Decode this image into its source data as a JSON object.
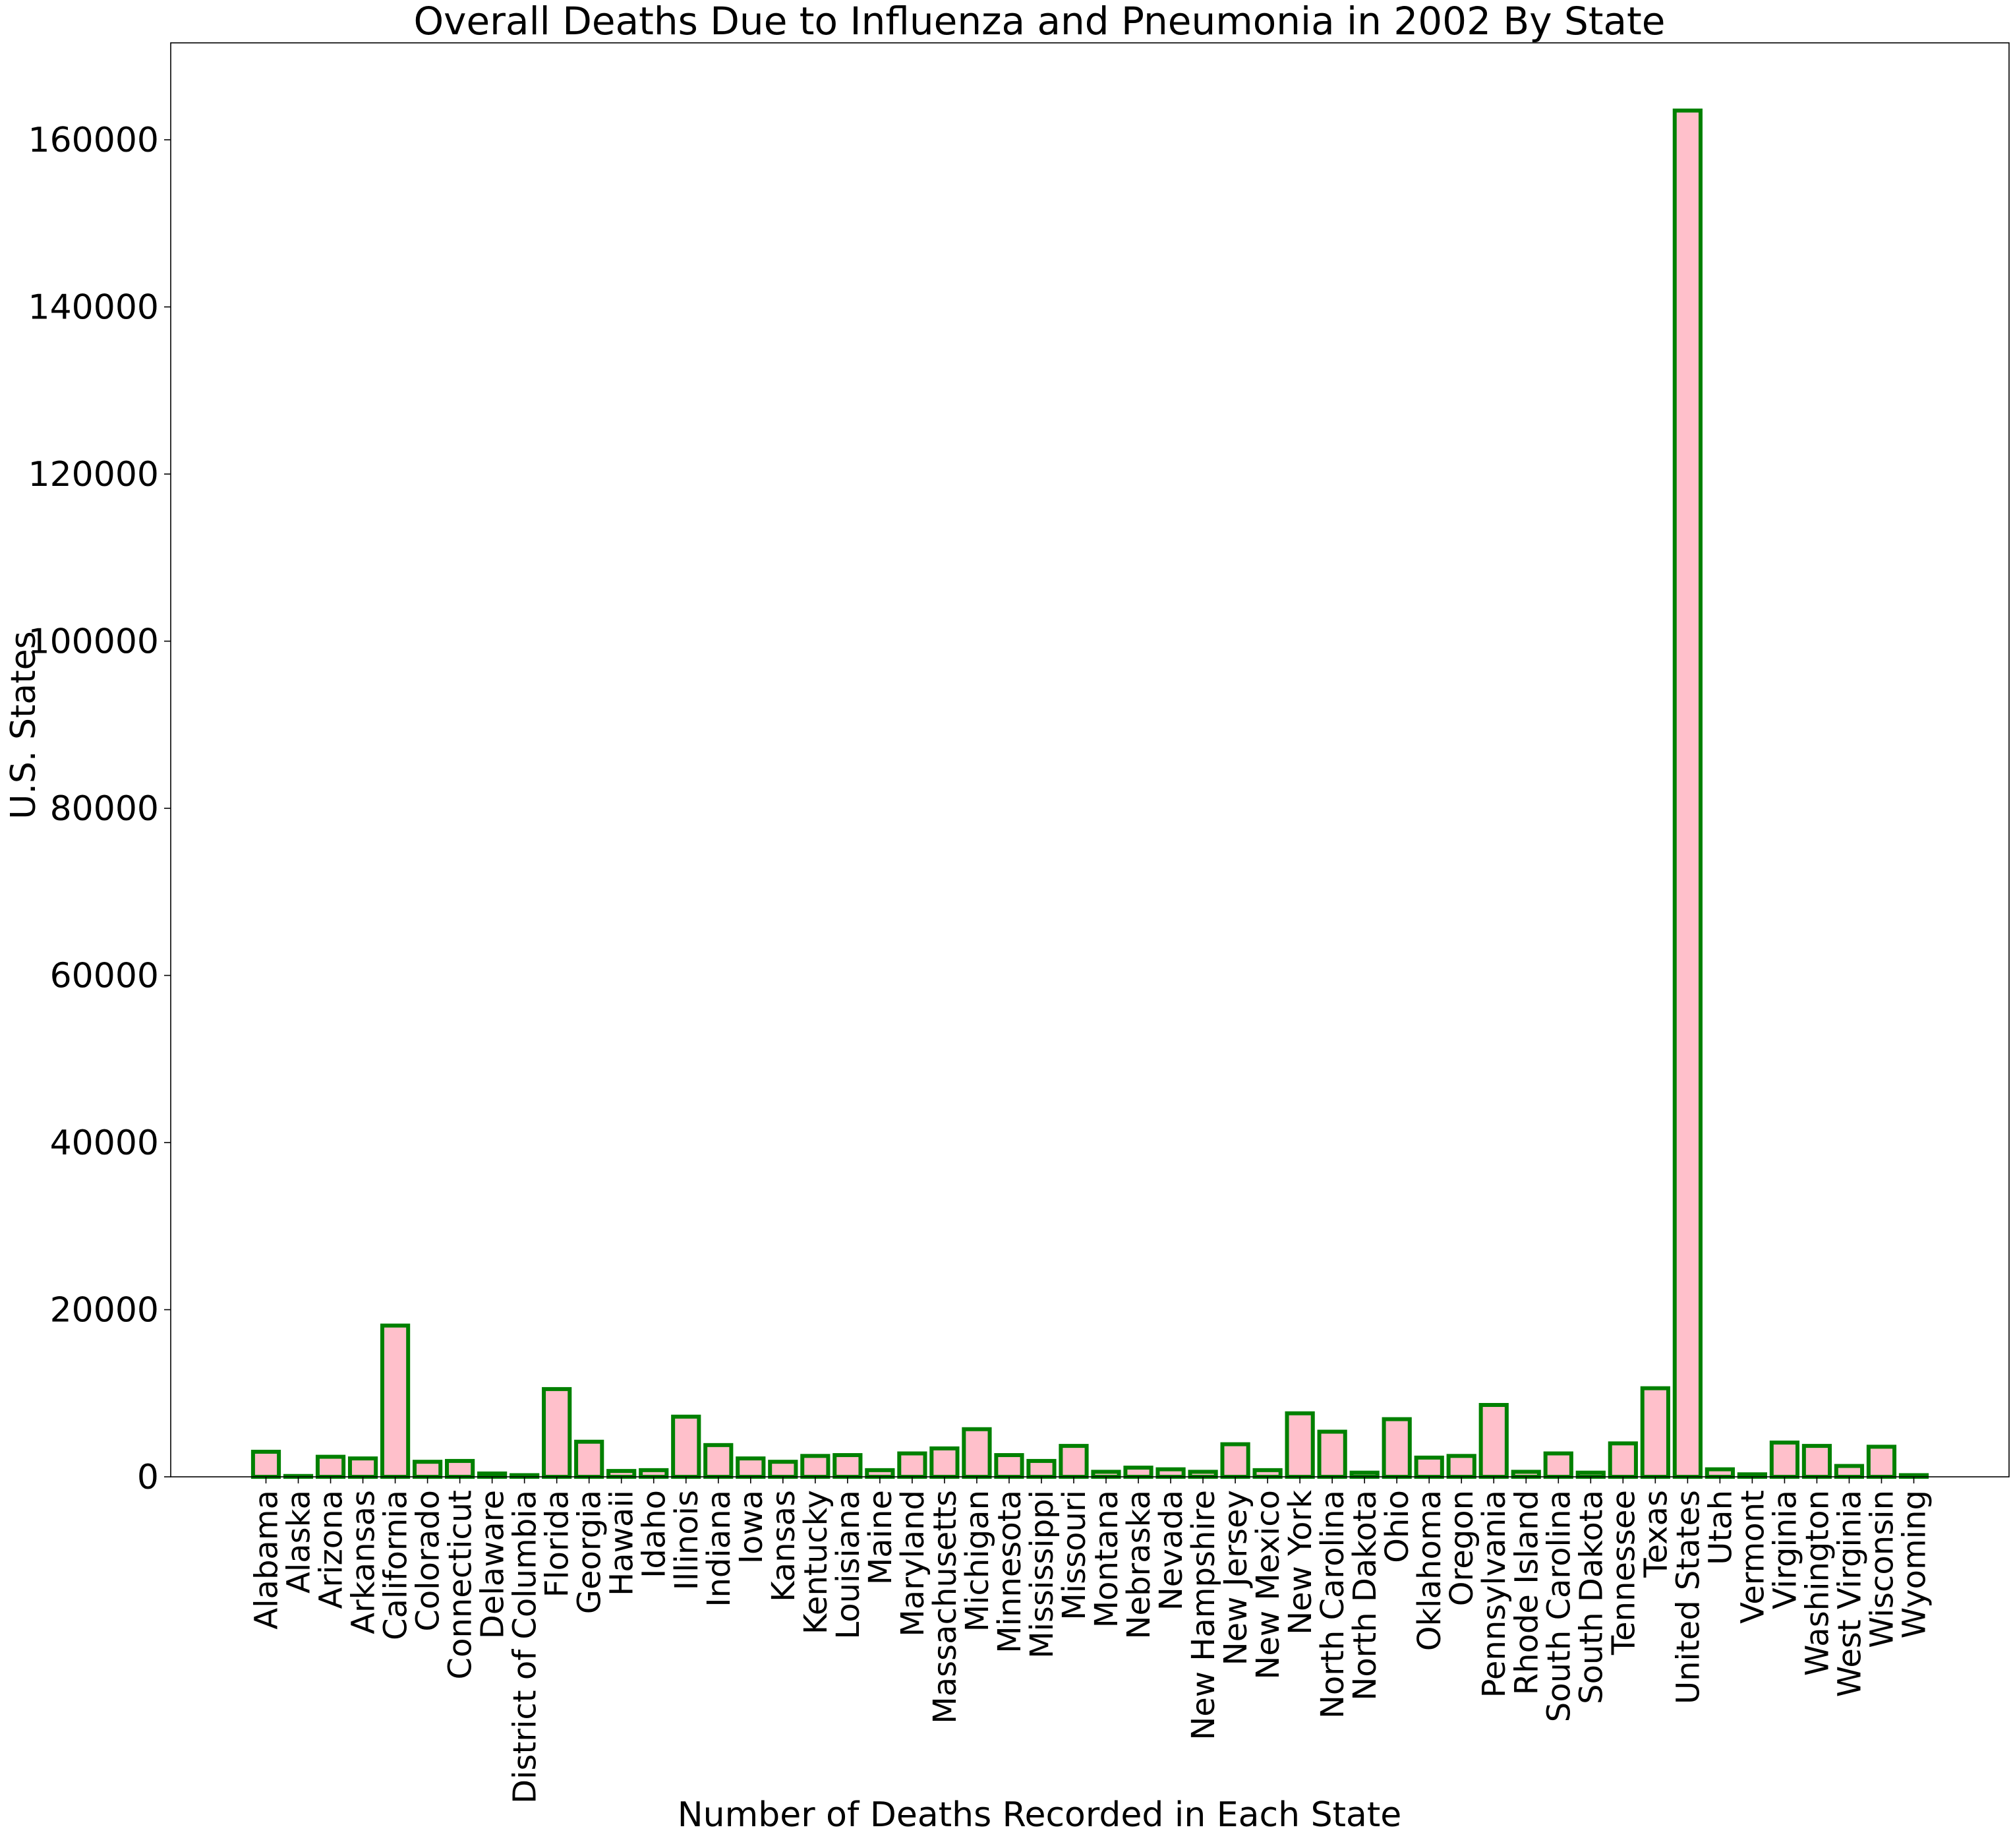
{
  "chart_data": {
    "type": "bar",
    "title": "Overall Deaths Due to Influenza and Pneumonia in 2002 By State",
    "xlabel": "Number of Deaths Recorded in Each State",
    "ylabel": "U.S. States",
    "ylim": [
      0,
      171600
    ],
    "yticks": [
      0,
      20000,
      40000,
      60000,
      80000,
      100000,
      120000,
      140000,
      160000
    ],
    "grid": false,
    "legend": "none",
    "colors": {
      "bar_fill": "#ffc0cb",
      "bar_edge": "#008000",
      "axis": "#000000"
    },
    "categories": [
      "Alabama",
      "Alaska",
      "Arizona",
      "Arkansas",
      "California",
      "Colorado",
      "Connecticut",
      "Delaware",
      "District of Columbia",
      "Florida",
      "Georgia",
      "Hawaii",
      "Idaho",
      "Illinois",
      "Indiana",
      "Iowa",
      "Kansas",
      "Kentucky",
      "Louisiana",
      "Maine",
      "Maryland",
      "Massachusetts",
      "Michigan",
      "Minnesota",
      "Mississippi",
      "Missouri",
      "Montana",
      "Nebraska",
      "Nevada",
      "New Hampshire",
      "New Jersey",
      "New Mexico",
      "New York",
      "North Carolina",
      "North Dakota",
      "Ohio",
      "Oklahoma",
      "Oregon",
      "Pennsylvania",
      "Rhode Island",
      "South Carolina",
      "South Dakota",
      "Tennessee",
      "Texas",
      "United States",
      "Utah",
      "Vermont",
      "Virginia",
      "Washington",
      "West Virginia",
      "Wisconsin",
      "Wyoming"
    ],
    "values": [
      3000,
      100,
      2400,
      2200,
      18100,
      1800,
      1900,
      400,
      200,
      10500,
      4200,
      700,
      800,
      7200,
      3800,
      2200,
      1800,
      2500,
      2600,
      800,
      2800,
      3400,
      5700,
      2600,
      1900,
      3700,
      600,
      1100,
      900,
      600,
      3900,
      800,
      7600,
      5400,
      500,
      6900,
      2300,
      2500,
      8600,
      600,
      2800,
      500,
      4000,
      10600,
      163500,
      900,
      300,
      4100,
      3700,
      1300,
      3600,
      200
    ]
  }
}
